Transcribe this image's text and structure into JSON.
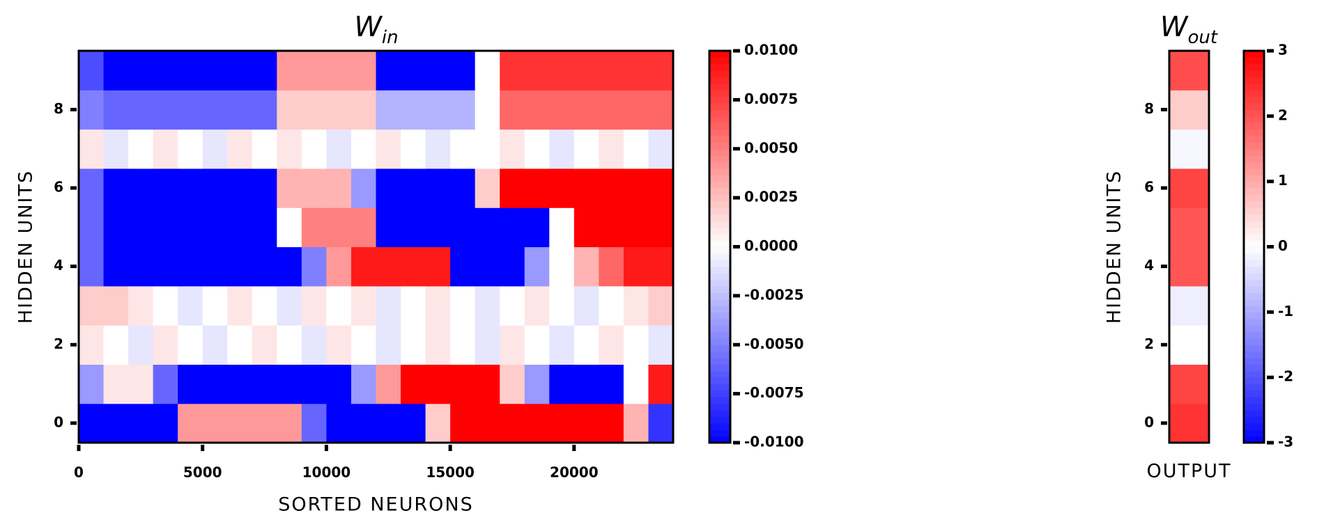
{
  "chart_data": [
    {
      "type": "heatmap",
      "title": "W",
      "title_sub": "in",
      "xlabel": "SORTED NEURONS",
      "ylabel": "HIDDEN UNITS",
      "x": [
        500,
        1500,
        2500,
        3500,
        4500,
        5500,
        6500,
        7500,
        8500,
        9500,
        10500,
        11500,
        12500,
        13500,
        14500,
        15500,
        16500,
        17500,
        18500,
        19500,
        20500,
        21500,
        22500,
        23500
      ],
      "xlim": [
        0,
        24000
      ],
      "xticks": [
        0,
        5000,
        10000,
        15000,
        20000
      ],
      "ylim": [
        9.5,
        -0.5
      ],
      "yticks": [
        0,
        2,
        4,
        6,
        8
      ],
      "cmap": "bwr",
      "values": [
        [
          -0.01,
          -0.01,
          -0.01,
          -0.01,
          0.004,
          0.004,
          0.004,
          0.004,
          0.004,
          -0.006,
          -0.01,
          -0.01,
          -0.01,
          -0.01,
          0.002,
          0.01,
          0.01,
          0.01,
          0.01,
          0.01,
          0.01,
          0.01,
          0.003,
          -0.008
        ],
        [
          -0.004,
          0.001,
          0.001,
          -0.006,
          -0.01,
          -0.01,
          -0.01,
          -0.01,
          -0.01,
          -0.01,
          -0.01,
          -0.004,
          0.004,
          0.01,
          0.01,
          0.01,
          0.01,
          0.002,
          -0.004,
          -0.01,
          -0.01,
          -0.01,
          0.0,
          0.009
        ],
        [
          0.001,
          0.0,
          -0.001,
          0.001,
          0.0,
          -0.001,
          0.0,
          0.001,
          0.0,
          -0.001,
          0.001,
          0.0,
          -0.001,
          0.0,
          0.001,
          0.0,
          -0.001,
          0.001,
          0.0,
          -0.001,
          0.0,
          0.001,
          0.0,
          -0.001
        ],
        [
          0.002,
          0.002,
          0.001,
          0.0,
          -0.001,
          0.0,
          0.001,
          0.0,
          -0.001,
          0.001,
          0.0,
          0.001,
          -0.001,
          0.0,
          0.001,
          0.0,
          -0.001,
          0.0,
          0.001,
          0.0,
          -0.001,
          0.0,
          0.001,
          0.002
        ],
        [
          -0.006,
          -0.01,
          -0.01,
          -0.01,
          -0.01,
          -0.01,
          -0.01,
          -0.01,
          -0.01,
          -0.005,
          0.004,
          0.009,
          0.009,
          0.009,
          0.009,
          -0.01,
          -0.01,
          -0.01,
          -0.004,
          0.0,
          0.003,
          0.006,
          0.009,
          0.009
        ],
        [
          -0.006,
          -0.01,
          -0.01,
          -0.01,
          -0.01,
          -0.01,
          -0.01,
          -0.01,
          0.0,
          0.005,
          0.005,
          0.005,
          -0.01,
          -0.01,
          -0.01,
          -0.01,
          -0.01,
          -0.01,
          -0.01,
          0.0,
          0.01,
          0.01,
          0.01,
          0.01
        ],
        [
          -0.006,
          -0.01,
          -0.01,
          -0.01,
          -0.01,
          -0.01,
          -0.01,
          -0.01,
          0.003,
          0.003,
          0.003,
          -0.004,
          -0.01,
          -0.01,
          -0.01,
          -0.01,
          0.002,
          0.01,
          0.01,
          0.01,
          0.01,
          0.01,
          0.01,
          0.01
        ],
        [
          0.001,
          -0.001,
          0.0,
          0.001,
          0.0,
          -0.001,
          0.001,
          0.0,
          0.001,
          0.0,
          -0.001,
          0.0,
          0.001,
          0.0,
          -0.001,
          0.0,
          0.0,
          0.001,
          0.0,
          -0.001,
          0.0,
          0.001,
          0.0,
          -0.001
        ],
        [
          -0.005,
          -0.006,
          -0.006,
          -0.006,
          -0.006,
          -0.006,
          -0.006,
          -0.006,
          0.002,
          0.002,
          0.002,
          0.002,
          -0.003,
          -0.003,
          -0.003,
          -0.003,
          0.0,
          0.006,
          0.006,
          0.006,
          0.006,
          0.006,
          0.006,
          0.006
        ],
        [
          -0.007,
          -0.01,
          -0.01,
          -0.01,
          -0.01,
          -0.01,
          -0.01,
          -0.01,
          0.004,
          0.004,
          0.004,
          0.004,
          -0.01,
          -0.01,
          -0.01,
          -0.01,
          0.0,
          0.008,
          0.008,
          0.008,
          0.008,
          0.008,
          0.008,
          0.008
        ]
      ],
      "colorbar": {
        "lim": [
          -0.01,
          0.01
        ],
        "ticks": [
          {
            "value": 0.01,
            "label": "0.0100"
          },
          {
            "value": 0.0075,
            "label": "0.0075"
          },
          {
            "value": 0.005,
            "label": "0.0050"
          },
          {
            "value": 0.0025,
            "label": "0.0025"
          },
          {
            "value": 0,
            "label": "0.0000"
          },
          {
            "value": -0.0025,
            "label": "-0.0025"
          },
          {
            "value": -0.005,
            "label": "-0.0050"
          },
          {
            "value": -0.0075,
            "label": "-0.0075"
          },
          {
            "value": -0.01,
            "label": "-0.0100"
          }
        ]
      }
    },
    {
      "type": "heatmap",
      "title": "W",
      "title_sub": "out",
      "ylabel": "HIDDEN UNITS",
      "categories": [
        "OUTPUT"
      ],
      "ylim": [
        9.5,
        -0.5
      ],
      "yticks": [
        0,
        2,
        4,
        6,
        8
      ],
      "cmap": "bwr",
      "values": [
        [
          2.4
        ],
        [
          2.2
        ],
        [
          0.0
        ],
        [
          -0.2
        ],
        [
          2.0
        ],
        [
          2.0
        ],
        [
          2.2
        ],
        [
          -0.1
        ],
        [
          0.6
        ],
        [
          2.1
        ]
      ],
      "colorbar": {
        "lim": [
          -3,
          3
        ],
        "ticks": [
          3,
          2,
          1,
          0,
          -1,
          -2,
          -3
        ]
      }
    }
  ]
}
